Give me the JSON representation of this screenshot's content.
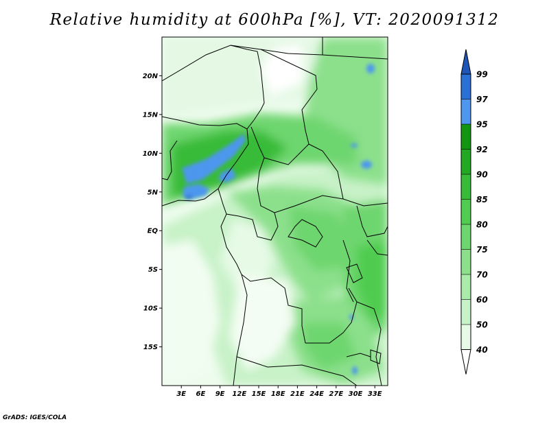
{
  "title": "Relative humidity at 600hPa [%], VT: 2020091312",
  "credit": "GrADS: IGES/COLA",
  "map": {
    "region": "Central Africa",
    "lon_range": [
      0,
      35
    ],
    "lat_range": [
      -20,
      25
    ],
    "lat_ticks": [
      {
        "value": 20,
        "label": "20N"
      },
      {
        "value": 15,
        "label": "15N"
      },
      {
        "value": 10,
        "label": "10N"
      },
      {
        "value": 5,
        "label": "5N"
      },
      {
        "value": 0,
        "label": "EQ"
      },
      {
        "value": -5,
        "label": "5S"
      },
      {
        "value": -10,
        "label": "10S"
      },
      {
        "value": -15,
        "label": "15S"
      }
    ],
    "lon_ticks": [
      {
        "value": 3,
        "label": "3E"
      },
      {
        "value": 6,
        "label": "6E"
      },
      {
        "value": 9,
        "label": "9E"
      },
      {
        "value": 12,
        "label": "12E"
      },
      {
        "value": 15,
        "label": "15E"
      },
      {
        "value": 18,
        "label": "18E"
      },
      {
        "value": 21,
        "label": "21E"
      },
      {
        "value": 24,
        "label": "24E"
      },
      {
        "value": 27,
        "label": "27E"
      },
      {
        "value": 30,
        "label": "30E"
      },
      {
        "value": 33,
        "label": "33E"
      }
    ]
  },
  "colorbar": {
    "levels": [
      "40",
      "50",
      "60",
      "70",
      "75",
      "80",
      "85",
      "90",
      "92",
      "95",
      "97",
      "99"
    ],
    "colors": [
      "#ffffff",
      "#e6fae6",
      "#c8f2c8",
      "#aaeaaa",
      "#8ce08c",
      "#6ed66e",
      "#50cc50",
      "#38bb38",
      "#22a822",
      "#129612",
      "#4e96ee",
      "#2a70d6",
      "#1e56b8"
    ]
  }
}
